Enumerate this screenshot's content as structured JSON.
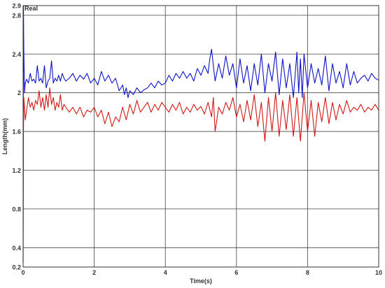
{
  "chart_data": {
    "type": "line",
    "title": "",
    "xlabel": "Time(s)",
    "ylabel": "Length(mm)",
    "legend_label": "Real",
    "legend_placement": "top-left",
    "grid": true,
    "xlim": [
      0,
      10
    ],
    "ylim": [
      0.2,
      2.9
    ],
    "x_ticks": [
      "0",
      "2",
      "4",
      "6",
      "8",
      "10"
    ],
    "y_ticks": [
      "0.2",
      "0.4",
      "0.8",
      "1.2",
      "1.6",
      "2",
      "2.4",
      "2.8",
      "2.9"
    ],
    "colors": {
      "blue_series": "#1010c8",
      "red_series": "#d01818",
      "grid": "#444444"
    },
    "series": [
      {
        "color": "#1010c8",
        "x": [
          0,
          0.01,
          0.02,
          0.04,
          0.06,
          0.1,
          0.15,
          0.2,
          0.25,
          0.3,
          0.35,
          0.4,
          0.45,
          0.5,
          0.55,
          0.6,
          0.65,
          0.7,
          0.75,
          0.8,
          0.85,
          0.9,
          0.95,
          1.0,
          1.05,
          1.1,
          1.15,
          1.2,
          1.3,
          1.4,
          1.5,
          1.6,
          1.7,
          1.8,
          1.9,
          2.0,
          2.1,
          2.2,
          2.3,
          2.4,
          2.5,
          2.6,
          2.7,
          2.8,
          2.85,
          2.9,
          2.95,
          3.0,
          3.1,
          3.2,
          3.3,
          3.4,
          3.5,
          3.6,
          3.7,
          3.8,
          3.9,
          4.0,
          4.1,
          4.2,
          4.3,
          4.4,
          4.5,
          4.6,
          4.7,
          4.8,
          4.9,
          5.0,
          5.1,
          5.2,
          5.25,
          5.3,
          5.35,
          5.4,
          5.5,
          5.6,
          5.7,
          5.8,
          5.9,
          6.0,
          6.1,
          6.2,
          6.3,
          6.4,
          6.5,
          6.6,
          6.7,
          6.8,
          6.9,
          7.0,
          7.1,
          7.2,
          7.3,
          7.4,
          7.5,
          7.6,
          7.7,
          7.75,
          7.8,
          7.85,
          7.9,
          8.0,
          8.1,
          8.2,
          8.3,
          8.4,
          8.5,
          8.6,
          8.7,
          8.8,
          8.9,
          9.0,
          9.1,
          9.2,
          9.3,
          9.4,
          9.5,
          9.6,
          9.7,
          9.8,
          9.9,
          10.0
        ],
        "values": [
          0.25,
          2.9,
          2.45,
          2.0,
          2.1,
          2.14,
          2.1,
          2.2,
          2.12,
          2.14,
          2.1,
          2.28,
          2.12,
          2.15,
          2.1,
          2.28,
          2.05,
          2.12,
          2.15,
          2.33,
          2.1,
          2.15,
          2.12,
          2.18,
          2.12,
          2.2,
          2.15,
          2.12,
          2.15,
          2.2,
          2.12,
          2.18,
          2.14,
          2.2,
          2.1,
          2.15,
          2.08,
          2.22,
          2.12,
          2.18,
          2.1,
          2.15,
          2.02,
          2.08,
          1.98,
          2.05,
          1.95,
          2.02,
          1.98,
          2.05,
          2.0,
          2.03,
          2.05,
          2.1,
          2.05,
          2.12,
          2.08,
          2.1,
          2.18,
          2.12,
          2.2,
          2.15,
          2.22,
          2.15,
          2.2,
          2.12,
          2.25,
          2.18,
          2.28,
          2.2,
          2.35,
          2.45,
          2.28,
          2.12,
          2.3,
          2.15,
          2.38,
          2.18,
          2.3,
          2.05,
          2.35,
          2.1,
          2.28,
          2.02,
          2.3,
          2.08,
          2.4,
          2.0,
          2.3,
          2.12,
          2.42,
          1.98,
          2.35,
          2.05,
          2.3,
          1.95,
          2.42,
          2.0,
          2.35,
          1.95,
          2.4,
          2.05,
          2.3,
          2.1,
          2.25,
          2.08,
          2.38,
          2.02,
          2.3,
          2.1,
          2.22,
          2.05,
          2.3,
          2.08,
          2.22,
          2.1,
          2.15,
          2.18,
          2.12,
          2.2,
          2.15,
          2.13
        ]
      },
      {
        "color": "#d01818",
        "x": [
          0,
          0.01,
          0.02,
          0.04,
          0.06,
          0.1,
          0.15,
          0.2,
          0.25,
          0.3,
          0.35,
          0.4,
          0.45,
          0.5,
          0.55,
          0.6,
          0.65,
          0.7,
          0.75,
          0.8,
          0.85,
          0.9,
          0.95,
          1.0,
          1.05,
          1.1,
          1.15,
          1.2,
          1.3,
          1.4,
          1.5,
          1.6,
          1.7,
          1.8,
          1.9,
          2.0,
          2.1,
          2.2,
          2.3,
          2.4,
          2.5,
          2.6,
          2.7,
          2.8,
          2.9,
          3.0,
          3.1,
          3.2,
          3.3,
          3.4,
          3.5,
          3.6,
          3.7,
          3.8,
          3.9,
          4.0,
          4.1,
          4.2,
          4.3,
          4.4,
          4.5,
          4.6,
          4.7,
          4.8,
          4.9,
          5.0,
          5.1,
          5.2,
          5.3,
          5.35,
          5.4,
          5.5,
          5.6,
          5.7,
          5.8,
          5.9,
          6.0,
          6.1,
          6.2,
          6.3,
          6.4,
          6.5,
          6.6,
          6.7,
          6.8,
          6.9,
          7.0,
          7.1,
          7.2,
          7.3,
          7.4,
          7.5,
          7.6,
          7.7,
          7.8,
          7.9,
          8.0,
          8.1,
          8.2,
          8.3,
          8.4,
          8.5,
          8.6,
          8.7,
          8.8,
          8.9,
          9.0,
          9.1,
          9.2,
          9.3,
          9.4,
          9.5,
          9.6,
          9.7,
          9.8,
          9.9,
          10.0
        ],
        "values": [
          0.25,
          1.6,
          1.95,
          1.85,
          1.72,
          1.82,
          1.95,
          1.85,
          1.9,
          1.82,
          1.92,
          1.88,
          2.02,
          1.85,
          1.95,
          1.82,
          1.98,
          1.85,
          2.05,
          1.88,
          1.95,
          1.82,
          1.9,
          1.85,
          1.98,
          1.82,
          1.88,
          1.85,
          1.8,
          1.85,
          1.78,
          1.85,
          1.75,
          1.82,
          1.8,
          1.85,
          1.75,
          1.82,
          1.68,
          1.8,
          1.65,
          1.75,
          1.7,
          1.85,
          1.72,
          1.88,
          1.78,
          1.92,
          1.8,
          1.85,
          1.9,
          1.8,
          1.88,
          1.82,
          1.9,
          1.85,
          1.8,
          1.88,
          1.82,
          1.9,
          1.78,
          1.85,
          1.8,
          1.88,
          1.82,
          1.86,
          1.78,
          1.9,
          1.75,
          1.95,
          1.6,
          1.85,
          1.78,
          1.9,
          1.82,
          1.95,
          1.75,
          1.88,
          1.7,
          1.92,
          1.72,
          1.98,
          1.65,
          1.9,
          1.5,
          1.95,
          1.6,
          2.0,
          1.55,
          1.92,
          1.62,
          1.98,
          1.55,
          1.95,
          1.5,
          2.0,
          1.6,
          1.92,
          1.55,
          1.9,
          1.7,
          1.95,
          1.68,
          1.9,
          1.72,
          1.88,
          1.78,
          1.92,
          1.8,
          1.85,
          1.82,
          1.88,
          1.8,
          1.85,
          1.82,
          1.88,
          1.82
        ]
      }
    ]
  }
}
